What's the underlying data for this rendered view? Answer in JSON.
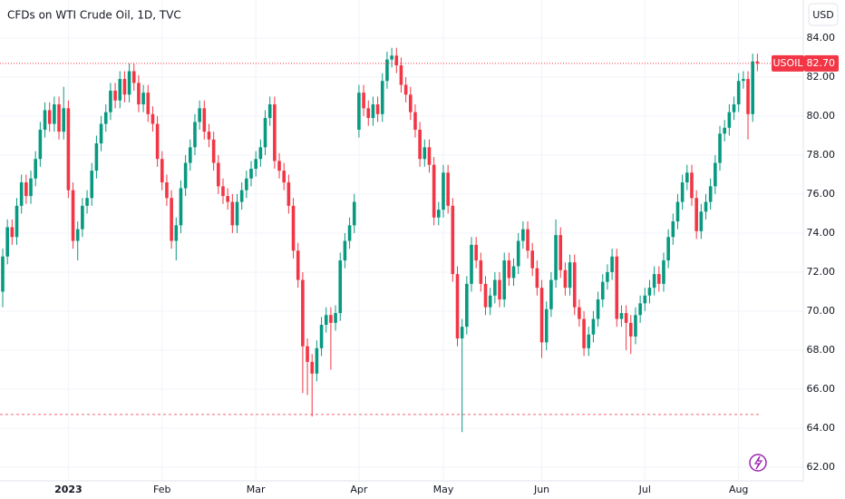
{
  "chart_data": {
    "type": "candlestick",
    "title": "CFDs on WTI Crude Oil, 1D, TVC",
    "currency": "USD",
    "series_name": "USOIL",
    "up_color": "#089981",
    "down_color": "#f23645",
    "grid": true,
    "ylim": [
      61.3,
      85.95
    ],
    "yticks": [
      {
        "value": 62,
        "label": "62.00"
      },
      {
        "value": 64,
        "label": "64.00"
      },
      {
        "value": 66,
        "label": "66.00"
      },
      {
        "value": 68,
        "label": "68.00"
      },
      {
        "value": 70,
        "label": "70.00"
      },
      {
        "value": 72,
        "label": "72.00"
      },
      {
        "value": 74,
        "label": "74.00"
      },
      {
        "value": 76,
        "label": "76.00"
      },
      {
        "value": 78,
        "label": "78.00"
      },
      {
        "value": 80,
        "label": "80.00"
      },
      {
        "value": 82,
        "label": "82.00"
      },
      {
        "value": 84,
        "label": "84.00"
      }
    ],
    "last_price": {
      "value": 82.7,
      "label": "82.70"
    },
    "reference_line": 64.7,
    "categories": [
      null,
      null,
      null,
      null,
      null,
      null,
      null,
      null,
      null,
      null,
      null,
      null,
      null,
      null,
      "2023",
      null,
      null,
      null,
      null,
      null,
      null,
      null,
      null,
      null,
      null,
      null,
      null,
      null,
      null,
      null,
      null,
      null,
      null,
      null,
      "Feb",
      null,
      null,
      null,
      null,
      null,
      null,
      null,
      null,
      null,
      null,
      null,
      null,
      null,
      null,
      null,
      null,
      null,
      null,
      null,
      "Mar",
      null,
      null,
      null,
      null,
      null,
      null,
      null,
      null,
      null,
      null,
      null,
      null,
      null,
      null,
      null,
      null,
      null,
      null,
      null,
      null,
      null,
      "Apr",
      null,
      null,
      null,
      null,
      null,
      null,
      null,
      null,
      null,
      null,
      null,
      null,
      null,
      null,
      null,
      null,
      null,
      "May",
      null,
      null,
      null,
      null,
      null,
      null,
      null,
      null,
      null,
      null,
      null,
      null,
      null,
      null,
      null,
      null,
      null,
      null,
      null,
      null,
      "Jun",
      null,
      null,
      null,
      null,
      null,
      null,
      null,
      null,
      null,
      null,
      null,
      null,
      null,
      null,
      null,
      null,
      null,
      null,
      null,
      null,
      null,
      "Jul",
      null,
      null,
      null,
      null,
      null,
      null,
      null,
      null,
      null,
      null,
      null,
      null,
      null,
      null,
      null,
      null,
      null,
      null,
      null,
      "Aug",
      null,
      null,
      null,
      null
    ],
    "open": [
      71.0,
      72.8,
      74.3,
      73.8,
      75.4,
      76.6,
      75.9,
      76.8,
      77.8,
      79.3,
      80.3,
      79.6,
      80.6,
      79.2,
      80.4,
      76.2,
      73.6,
      74.2,
      75.4,
      75.8,
      77.2,
      78.6,
      79.6,
      80.2,
      81.3,
      80.8,
      81.9,
      81.1,
      82.3,
      81.7,
      80.6,
      81.2,
      80.1,
      79.6,
      77.8,
      76.6,
      75.8,
      73.6,
      74.4,
      76.3,
      77.6,
      78.4,
      79.7,
      80.4,
      79.2,
      78.8,
      77.6,
      76.4,
      75.9,
      75.6,
      74.4,
      75.6,
      76.2,
      76.8,
      77.3,
      77.8,
      78.4,
      79.9,
      80.6,
      77.7,
      77.2,
      76.6,
      75.4,
      73.1,
      71.6,
      68.2,
      67.4,
      66.8,
      68.1,
      69.3,
      69.8,
      69.4,
      69.9,
      72.6,
      73.6,
      74.4,
      79.3,
      81.2,
      80.4,
      79.9,
      80.6,
      80.1,
      81.8,
      82.9,
      83.1,
      82.6,
      81.6,
      81.1,
      80.2,
      79.3,
      77.8,
      78.4,
      77.5,
      74.8,
      75.2,
      77.1,
      75.4,
      71.9,
      68.6,
      69.2,
      71.4,
      73.4,
      72.6,
      71.4,
      70.2,
      70.8,
      71.6,
      70.6,
      72.6,
      71.7,
      72.3,
      73.6,
      74.2,
      73.1,
      72.2,
      71.2,
      68.4,
      70.1,
      71.6,
      73.9,
      72.1,
      71.2,
      72.5,
      70.2,
      69.6,
      68.1,
      68.8,
      69.6,
      70.6,
      71.5,
      72.0,
      72.8,
      69.6,
      69.9,
      69.4,
      68.7,
      69.8,
      70.4,
      70.8,
      71.2,
      71.9,
      71.4,
      72.6,
      73.8,
      74.6,
      75.6,
      76.6,
      77.1,
      75.8,
      74.1,
      75.1,
      75.6,
      76.4,
      77.6,
      79.1,
      79.4,
      80.2,
      80.6,
      81.8,
      81.9,
      80.1,
      82.8
    ],
    "high": [
      73.2,
      74.7,
      74.7,
      75.8,
      77.0,
      77.0,
      77.2,
      78.2,
      79.7,
      80.7,
      80.7,
      81.0,
      81.0,
      81.5,
      80.8,
      76.6,
      74.6,
      75.8,
      76.2,
      77.6,
      79.0,
      80.0,
      80.6,
      81.7,
      81.7,
      82.3,
      82.3,
      82.7,
      82.7,
      82.1,
      81.6,
      81.6,
      80.5,
      80.0,
      78.2,
      77.0,
      76.2,
      74.8,
      76.7,
      78.0,
      78.8,
      80.1,
      80.8,
      80.8,
      79.6,
      79.2,
      78.0,
      76.8,
      76.3,
      76.0,
      76.0,
      76.6,
      77.2,
      77.7,
      78.2,
      78.8,
      80.3,
      81.0,
      81.0,
      78.1,
      77.6,
      77.0,
      75.8,
      73.5,
      72.0,
      68.6,
      67.8,
      68.5,
      69.7,
      70.2,
      70.2,
      70.3,
      73.0,
      74.0,
      74.8,
      76.0,
      81.6,
      81.6,
      80.8,
      81.0,
      81.0,
      82.2,
      83.3,
      83.5,
      83.5,
      83.0,
      82.0,
      81.5,
      80.6,
      79.7,
      78.8,
      78.8,
      77.9,
      75.6,
      77.5,
      77.5,
      75.8,
      72.3,
      69.6,
      71.8,
      73.8,
      73.8,
      73.0,
      71.8,
      71.2,
      72.0,
      72.0,
      73.0,
      73.0,
      72.7,
      74.0,
      74.6,
      74.6,
      73.5,
      72.6,
      71.6,
      70.5,
      72.0,
      74.7,
      74.3,
      72.5,
      72.9,
      72.9,
      70.6,
      70.0,
      69.2,
      70.0,
      71.0,
      71.9,
      72.4,
      73.2,
      73.2,
      70.3,
      70.3,
      69.8,
      70.2,
      70.8,
      71.2,
      71.6,
      72.3,
      72.3,
      73.0,
      74.2,
      75.0,
      76.0,
      77.0,
      77.5,
      77.5,
      76.2,
      75.5,
      76.0,
      76.8,
      78.0,
      79.5,
      79.8,
      80.6,
      81.0,
      82.2,
      82.3,
      82.3,
      83.2,
      83.2
    ],
    "low": [
      70.2,
      72.4,
      73.4,
      73.4,
      75.0,
      75.5,
      75.5,
      76.4,
      77.4,
      78.9,
      79.2,
      79.2,
      78.8,
      78.8,
      75.8,
      73.2,
      72.6,
      73.8,
      75.0,
      75.4,
      76.8,
      78.2,
      79.2,
      79.8,
      80.4,
      80.4,
      80.7,
      80.7,
      81.3,
      80.2,
      80.2,
      79.7,
      79.2,
      77.4,
      76.2,
      75.4,
      73.2,
      72.6,
      74.0,
      75.9,
      77.2,
      78.0,
      79.3,
      78.8,
      78.4,
      77.2,
      76.0,
      75.5,
      75.2,
      74.0,
      74.0,
      75.2,
      75.8,
      76.4,
      76.9,
      77.4,
      78.0,
      79.5,
      77.3,
      76.8,
      76.2,
      75.0,
      72.7,
      71.2,
      65.8,
      65.7,
      64.6,
      66.4,
      67.7,
      68.9,
      67.0,
      69.0,
      69.5,
      72.2,
      73.2,
      74.0,
      78.9,
      80.0,
      79.5,
      79.5,
      79.7,
      79.7,
      81.4,
      82.5,
      82.2,
      81.2,
      80.7,
      79.8,
      78.9,
      77.4,
      77.4,
      77.1,
      74.4,
      74.4,
      74.8,
      75.0,
      71.5,
      68.2,
      63.8,
      68.8,
      71.0,
      72.2,
      71.0,
      69.8,
      69.8,
      70.4,
      70.2,
      70.2,
      71.3,
      71.3,
      71.9,
      73.2,
      72.7,
      71.8,
      70.8,
      67.6,
      68.0,
      69.7,
      71.2,
      71.7,
      70.8,
      70.8,
      69.8,
      69.2,
      67.7,
      67.7,
      68.4,
      69.2,
      70.2,
      71.1,
      71.6,
      69.2,
      69.2,
      68.0,
      67.8,
      68.3,
      69.4,
      70.0,
      70.4,
      70.8,
      71.0,
      71.0,
      72.2,
      73.4,
      74.2,
      75.2,
      76.2,
      75.4,
      73.7,
      73.7,
      74.7,
      75.2,
      76.0,
      77.2,
      78.7,
      79.0,
      79.8,
      80.2,
      81.4,
      78.8,
      79.7,
      82.3
    ],
    "close": [
      72.8,
      74.3,
      73.8,
      75.4,
      76.6,
      75.9,
      76.8,
      77.8,
      79.3,
      80.3,
      79.6,
      80.6,
      79.2,
      80.4,
      76.2,
      73.6,
      74.2,
      75.4,
      75.8,
      77.2,
      78.6,
      79.6,
      80.2,
      81.3,
      80.8,
      81.9,
      81.1,
      82.3,
      81.7,
      80.6,
      81.2,
      80.1,
      79.6,
      77.8,
      76.6,
      75.8,
      73.6,
      74.4,
      76.3,
      77.6,
      78.4,
      79.7,
      80.4,
      79.2,
      78.8,
      77.6,
      76.4,
      75.9,
      75.6,
      74.4,
      75.6,
      76.2,
      76.8,
      77.3,
      77.8,
      78.4,
      79.9,
      80.6,
      77.7,
      77.2,
      76.6,
      75.4,
      73.1,
      71.6,
      68.2,
      67.4,
      66.8,
      68.1,
      69.3,
      69.8,
      69.4,
      69.9,
      72.6,
      73.6,
      74.4,
      75.6,
      81.2,
      80.4,
      79.9,
      80.6,
      80.1,
      81.8,
      82.9,
      83.1,
      82.6,
      81.6,
      81.1,
      80.2,
      79.3,
      77.8,
      78.4,
      77.5,
      74.8,
      75.2,
      77.1,
      75.4,
      71.9,
      68.6,
      69.2,
      71.4,
      73.4,
      72.6,
      71.4,
      70.2,
      70.8,
      71.6,
      70.6,
      72.6,
      71.7,
      72.3,
      73.6,
      74.2,
      73.1,
      72.2,
      71.2,
      68.4,
      70.1,
      71.6,
      73.9,
      72.1,
      71.2,
      72.5,
      70.2,
      69.6,
      68.1,
      68.8,
      69.6,
      70.6,
      71.5,
      72.0,
      72.8,
      69.6,
      69.9,
      69.4,
      68.7,
      69.8,
      70.4,
      70.8,
      71.2,
      71.9,
      71.4,
      72.6,
      73.8,
      74.6,
      75.6,
      76.6,
      77.1,
      75.8,
      74.1,
      75.1,
      75.6,
      76.4,
      77.6,
      79.1,
      79.4,
      80.2,
      80.6,
      81.8,
      81.9,
      80.1,
      82.8,
      82.7
    ]
  }
}
